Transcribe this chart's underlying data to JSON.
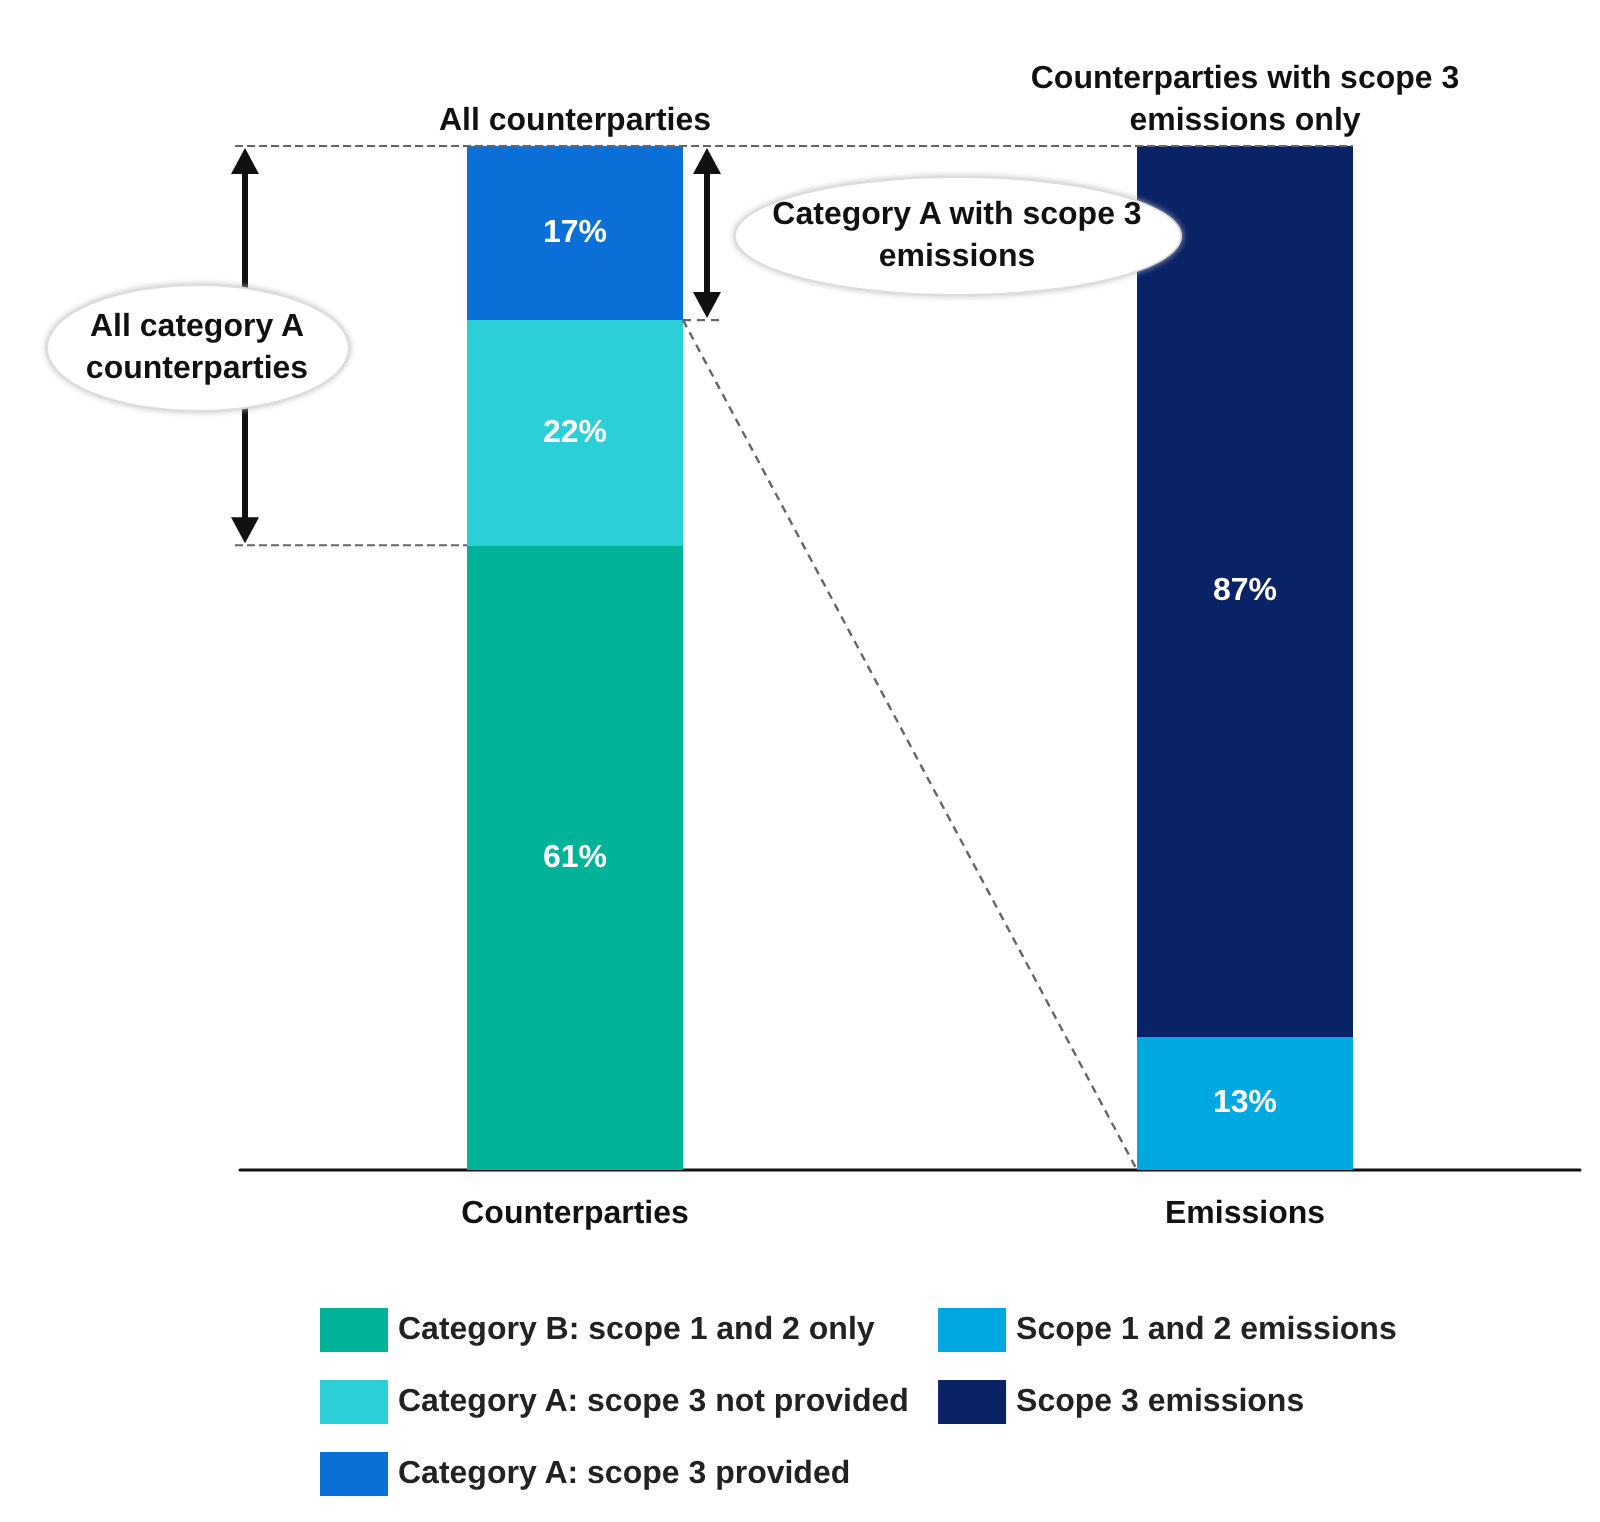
{
  "chart_data": {
    "type": "bar",
    "stacked": true,
    "legend": "bottom",
    "categories": [
      "Counterparties",
      "Emissions"
    ],
    "series": [
      {
        "name": "Category B: scope 1 and 2 only",
        "color": "#00b398",
        "values": [
          61,
          null
        ],
        "value_labels": [
          "61%",
          null
        ]
      },
      {
        "name": "Category A: scope 3 not provided",
        "color": "#2ccfd8",
        "values": [
          22,
          null
        ],
        "value_labels": [
          "22%",
          null
        ]
      },
      {
        "name": "Category A: scope 3 provided",
        "color": "#0a6fd6",
        "values": [
          17,
          null
        ],
        "value_labels": [
          "17%",
          null
        ]
      },
      {
        "name": "Scope 1 and 2 emissions",
        "color": "#00a8e2",
        "values": [
          null,
          13
        ],
        "value_labels": [
          null,
          "13%"
        ]
      },
      {
        "name": "Scope 3 emissions",
        "color": "#0a2266",
        "values": [
          null,
          87
        ],
        "value_labels": [
          null,
          "87%"
        ]
      }
    ],
    "ref_lines": [
      {
        "axis": "y",
        "value": 100,
        "color": "#666666",
        "line_style": "dashed"
      },
      {
        "axis": "y",
        "value": 61,
        "color": "#666666",
        "line_style": "dashed"
      }
    ],
    "annotations": [
      {
        "text": "All counterparties",
        "x": "Counterparties",
        "y": 100
      },
      {
        "text": "Counterparties with scope 3 emissions only",
        "x": "Emissions",
        "y": 100
      },
      "All category A counterparties",
      "Category A with scope 3 emissions"
    ]
  }
}
